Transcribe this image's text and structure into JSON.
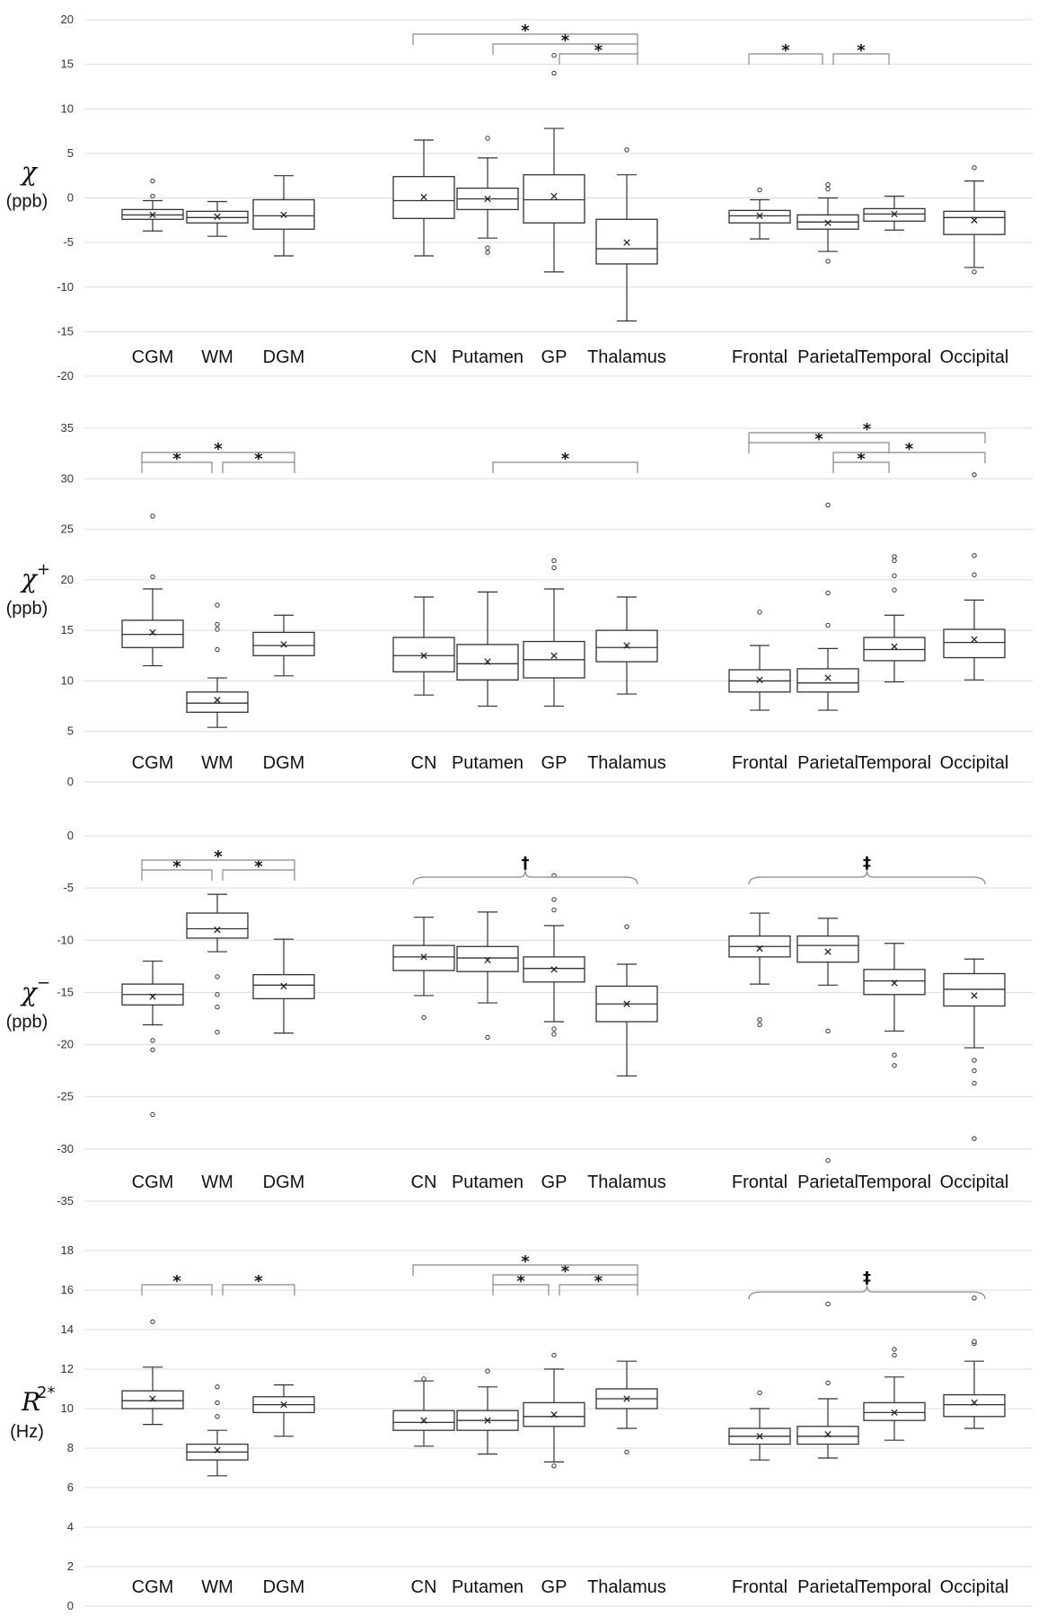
{
  "chart_data": [
    {
      "type": "box",
      "ylabel_symbol": "χ",
      "ylabel_superscript": "",
      "ylabel_unit": "(ppb)",
      "ylim": [
        -20,
        20
      ],
      "yticks": [
        -20,
        -15,
        -10,
        -5,
        0,
        5,
        10,
        15,
        20
      ],
      "grid": true,
      "groups": [
        {
          "categories": [
            "CGM",
            "WM",
            "DGM"
          ],
          "boxes": [
            {
              "wl": -3.7,
              "q1": -2.4,
              "med": -1.9,
              "q3": -1.3,
              "wh": -0.3,
              "mean": -1.9,
              "outliers": [
                0.2,
                1.9
              ]
            },
            {
              "wl": -4.3,
              "q1": -2.8,
              "med": -2.2,
              "q3": -1.5,
              "wh": -0.4,
              "mean": -2.1,
              "outliers": []
            },
            {
              "wl": -6.5,
              "q1": -3.5,
              "med": -2.0,
              "q3": -0.2,
              "wh": 2.5,
              "mean": -1.9,
              "outliers": []
            }
          ]
        },
        {
          "categories": [
            "CN",
            "Putamen",
            "GP",
            "Thalamus"
          ],
          "boxes": [
            {
              "wl": -6.5,
              "q1": -2.3,
              "med": -0.3,
              "q3": 2.4,
              "wh": 6.5,
              "mean": 0.1,
              "outliers": []
            },
            {
              "wl": -4.5,
              "q1": -1.3,
              "med": -0.1,
              "q3": 1.1,
              "wh": 4.5,
              "mean": -0.1,
              "outliers": [
                -5.6,
                -6.1,
                6.7
              ]
            },
            {
              "wl": -8.3,
              "q1": -2.8,
              "med": -0.2,
              "q3": 2.6,
              "wh": 7.8,
              "mean": 0.2,
              "outliers": [
                14.0,
                16.0
              ]
            },
            {
              "wl": -13.8,
              "q1": -7.4,
              "med": -5.7,
              "q3": -2.4,
              "wh": 2.6,
              "mean": -5.0,
              "outliers": [
                5.4
              ]
            }
          ]
        },
        {
          "categories": [
            "Frontal",
            "Parietal",
            "Temporal",
            "Occipital"
          ],
          "boxes": [
            {
              "wl": -4.6,
              "q1": -2.8,
              "med": -2.0,
              "q3": -1.4,
              "wh": -0.2,
              "mean": -2.0,
              "outliers": [
                0.9
              ]
            },
            {
              "wl": -6.0,
              "q1": -3.5,
              "med": -2.7,
              "q3": -1.9,
              "wh": 0.0,
              "mean": -2.8,
              "outliers": [
                -7.1,
                1.0,
                1.5
              ]
            },
            {
              "wl": -3.6,
              "q1": -2.6,
              "med": -1.8,
              "q3": -1.2,
              "wh": 0.2,
              "mean": -1.8,
              "outliers": []
            },
            {
              "wl": -7.8,
              "q1": -4.1,
              "med": -2.2,
              "q3": -1.5,
              "wh": 1.9,
              "mean": -2.5,
              "outliers": [
                -8.3,
                3.4
              ]
            }
          ]
        }
      ],
      "annotations": [
        {
          "type": "bracket",
          "group": 1,
          "from": 0,
          "to": 3,
          "level": 2,
          "label": "*"
        },
        {
          "type": "bracket",
          "group": 1,
          "from": 1,
          "to": 3,
          "level": 1,
          "label": "*"
        },
        {
          "type": "bracket",
          "group": 1,
          "from": 2,
          "to": 3,
          "level": 0,
          "label": "*"
        },
        {
          "type": "bracket",
          "group": 2,
          "from": 0,
          "to": 1,
          "level": 0,
          "label": "*"
        },
        {
          "type": "bracket",
          "group": 2,
          "from": 1,
          "to": 2,
          "level": 0,
          "label": "*"
        }
      ]
    },
    {
      "type": "box",
      "ylabel_symbol": "χ",
      "ylabel_superscript": "+",
      "ylabel_unit": "(ppb)",
      "ylim": [
        0,
        35
      ],
      "yticks": [
        0,
        5,
        10,
        15,
        20,
        25,
        30,
        35
      ],
      "grid": true,
      "groups": [
        {
          "categories": [
            "CGM",
            "WM",
            "DGM"
          ],
          "boxes": [
            {
              "wl": 11.5,
              "q1": 13.3,
              "med": 14.6,
              "q3": 16.0,
              "wh": 19.1,
              "mean": 14.8,
              "outliers": [
                20.3,
                26.3
              ]
            },
            {
              "wl": 5.4,
              "q1": 6.9,
              "med": 7.8,
              "q3": 8.9,
              "wh": 10.3,
              "mean": 8.1,
              "outliers": [
                13.1,
                15.1,
                15.6,
                17.5
              ]
            },
            {
              "wl": 10.5,
              "q1": 12.5,
              "med": 13.5,
              "q3": 14.8,
              "wh": 16.5,
              "mean": 13.6,
              "outliers": []
            }
          ]
        },
        {
          "categories": [
            "CN",
            "Putamen",
            "GP",
            "Thalamus"
          ],
          "boxes": [
            {
              "wl": 8.6,
              "q1": 10.9,
              "med": 12.5,
              "q3": 14.3,
              "wh": 18.3,
              "mean": 12.5,
              "outliers": []
            },
            {
              "wl": 7.5,
              "q1": 10.1,
              "med": 11.7,
              "q3": 13.6,
              "wh": 18.8,
              "mean": 11.9,
              "outliers": []
            },
            {
              "wl": 7.5,
              "q1": 10.3,
              "med": 12.1,
              "q3": 13.9,
              "wh": 19.1,
              "mean": 12.5,
              "outliers": [
                21.2,
                21.9
              ]
            },
            {
              "wl": 8.7,
              "q1": 11.9,
              "med": 13.3,
              "q3": 15.0,
              "wh": 18.3,
              "mean": 13.5,
              "outliers": []
            }
          ]
        },
        {
          "categories": [
            "Frontal",
            "Parietal",
            "Temporal",
            "Occipital"
          ],
          "boxes": [
            {
              "wl": 7.1,
              "q1": 8.9,
              "med": 10.0,
              "q3": 11.1,
              "wh": 13.5,
              "mean": 10.1,
              "outliers": [
                16.8
              ]
            },
            {
              "wl": 7.1,
              "q1": 8.9,
              "med": 9.8,
              "q3": 11.2,
              "wh": 13.2,
              "mean": 10.3,
              "outliers": [
                15.5,
                18.7,
                27.4
              ]
            },
            {
              "wl": 9.9,
              "q1": 12.0,
              "med": 13.1,
              "q3": 14.3,
              "wh": 16.5,
              "mean": 13.4,
              "outliers": [
                19.0,
                20.4,
                21.9,
                22.3
              ]
            },
            {
              "wl": 10.1,
              "q1": 12.3,
              "med": 13.8,
              "q3": 15.1,
              "wh": 18.0,
              "mean": 14.1,
              "outliers": [
                20.5,
                22.4,
                30.4
              ]
            }
          ]
        }
      ],
      "annotations": [
        {
          "type": "bracket",
          "group": 0,
          "from": 0,
          "to": 1,
          "level": 0,
          "label": "*"
        },
        {
          "type": "bracket",
          "group": 0,
          "from": 1,
          "to": 2,
          "level": 0,
          "label": "*"
        },
        {
          "type": "bracket",
          "group": 0,
          "from": 0,
          "to": 2,
          "level": 1,
          "label": "*"
        },
        {
          "type": "bracket",
          "group": 1,
          "from": 1,
          "to": 3,
          "level": 0,
          "label": "*"
        },
        {
          "type": "bracket",
          "group": 2,
          "from": 1,
          "to": 2,
          "level": 0,
          "label": "*"
        },
        {
          "type": "bracket",
          "group": 2,
          "from": 1,
          "to": 3,
          "level": 1,
          "label": "*"
        },
        {
          "type": "bracket",
          "group": 2,
          "from": 0,
          "to": 2,
          "level": 2,
          "label": "*"
        },
        {
          "type": "bracket",
          "group": 2,
          "from": 0,
          "to": 3,
          "level": 3,
          "label": "*"
        }
      ]
    },
    {
      "type": "box",
      "ylabel_symbol": "χ",
      "ylabel_superscript": "−",
      "ylabel_unit": "(ppb)",
      "ylim": [
        -35,
        0
      ],
      "yticks": [
        -35,
        -30,
        -25,
        -20,
        -15,
        -10,
        -5,
        0
      ],
      "grid": true,
      "groups": [
        {
          "categories": [
            "CGM",
            "WM",
            "DGM"
          ],
          "boxes": [
            {
              "wl": -18.1,
              "q1": -16.2,
              "med": -15.2,
              "q3": -14.2,
              "wh": -12.0,
              "mean": -15.4,
              "outliers": [
                -19.6,
                -20.5,
                -26.7
              ]
            },
            {
              "wl": -11.1,
              "q1": -9.8,
              "med": -8.9,
              "q3": -7.4,
              "wh": -5.6,
              "mean": -9.0,
              "outliers": [
                -13.5,
                -15.2,
                -16.4,
                -18.8
              ]
            },
            {
              "wl": -18.9,
              "q1": -15.6,
              "med": -14.3,
              "q3": -13.3,
              "wh": -9.9,
              "mean": -14.4,
              "outliers": []
            }
          ]
        },
        {
          "categories": [
            "CN",
            "Putamen",
            "GP",
            "Thalamus"
          ],
          "boxes": [
            {
              "wl": -15.3,
              "q1": -12.9,
              "med": -11.6,
              "q3": -10.5,
              "wh": -7.8,
              "mean": -11.6,
              "outliers": [
                -17.4
              ]
            },
            {
              "wl": -16.0,
              "q1": -13.0,
              "med": -11.7,
              "q3": -10.6,
              "wh": -7.3,
              "mean": -11.9,
              "outliers": [
                -19.3
              ]
            },
            {
              "wl": -17.8,
              "q1": -14.0,
              "med": -12.7,
              "q3": -11.6,
              "wh": -8.6,
              "mean": -12.8,
              "outliers": [
                -3.8,
                -6.1,
                -7.1,
                -18.5,
                -19.0
              ]
            },
            {
              "wl": -23.0,
              "q1": -17.8,
              "med": -16.1,
              "q3": -14.4,
              "wh": -12.3,
              "mean": -16.1,
              "outliers": [
                -8.7
              ]
            }
          ]
        },
        {
          "categories": [
            "Frontal",
            "Parietal",
            "Temporal",
            "Occipital"
          ],
          "boxes": [
            {
              "wl": -14.2,
              "q1": -11.6,
              "med": -10.6,
              "q3": -9.6,
              "wh": -7.4,
              "mean": -10.8,
              "outliers": [
                -17.6,
                -18.1
              ]
            },
            {
              "wl": -14.3,
              "q1": -12.1,
              "med": -10.5,
              "q3": -9.6,
              "wh": -7.9,
              "mean": -11.1,
              "outliers": [
                -18.7,
                -31.1
              ]
            },
            {
              "wl": -18.7,
              "q1": -15.2,
              "med": -13.9,
              "q3": -12.8,
              "wh": -10.3,
              "mean": -14.1,
              "outliers": [
                -21.0,
                -22.0
              ]
            },
            {
              "wl": -20.3,
              "q1": -16.3,
              "med": -14.7,
              "q3": -13.2,
              "wh": -11.8,
              "mean": -15.3,
              "outliers": [
                -21.5,
                -22.5,
                -23.7,
                -29.0
              ]
            }
          ]
        }
      ],
      "annotations": [
        {
          "type": "bracket",
          "group": 0,
          "from": 0,
          "to": 1,
          "level": 0,
          "label": "*"
        },
        {
          "type": "bracket",
          "group": 0,
          "from": 1,
          "to": 2,
          "level": 0,
          "label": "*"
        },
        {
          "type": "bracket",
          "group": 0,
          "from": 0,
          "to": 2,
          "level": 1,
          "label": "*"
        },
        {
          "type": "brace",
          "group": 1,
          "from": 0,
          "to": 3,
          "level": 0,
          "label": "†"
        },
        {
          "type": "brace",
          "group": 2,
          "from": 0,
          "to": 3,
          "level": 0,
          "label": "‡"
        }
      ]
    },
    {
      "type": "box",
      "ylabel_symbol": "R",
      "ylabel_superscript": "2*",
      "ylabel_unit": "(Hz)",
      "ylim": [
        0,
        18
      ],
      "yticks": [
        0,
        2,
        4,
        6,
        8,
        10,
        12,
        14,
        16,
        18
      ],
      "grid": true,
      "groups": [
        {
          "categories": [
            "CGM",
            "WM",
            "DGM"
          ],
          "boxes": [
            {
              "wl": 9.2,
              "q1": 10.0,
              "med": 10.4,
              "q3": 10.9,
              "wh": 12.1,
              "mean": 10.5,
              "outliers": [
                14.4
              ]
            },
            {
              "wl": 6.6,
              "q1": 7.4,
              "med": 7.8,
              "q3": 8.2,
              "wh": 8.9,
              "mean": 7.9,
              "outliers": [
                9.6,
                10.3,
                11.1
              ]
            },
            {
              "wl": 8.6,
              "q1": 9.8,
              "med": 10.2,
              "q3": 10.6,
              "wh": 11.2,
              "mean": 10.2,
              "outliers": []
            }
          ]
        },
        {
          "categories": [
            "CN",
            "Putamen",
            "GP",
            "Thalamus"
          ],
          "boxes": [
            {
              "wl": 8.1,
              "q1": 8.9,
              "med": 9.3,
              "q3": 9.9,
              "wh": 11.4,
              "mean": 9.4,
              "outliers": [
                11.5
              ]
            },
            {
              "wl": 7.7,
              "q1": 8.9,
              "med": 9.4,
              "q3": 9.9,
              "wh": 11.1,
              "mean": 9.4,
              "outliers": [
                11.9
              ]
            },
            {
              "wl": 7.3,
              "q1": 9.1,
              "med": 9.6,
              "q3": 10.3,
              "wh": 12.0,
              "mean": 9.7,
              "outliers": [
                7.1,
                12.7
              ]
            },
            {
              "wl": 9.0,
              "q1": 10.0,
              "med": 10.5,
              "q3": 11.0,
              "wh": 12.4,
              "mean": 10.5,
              "outliers": [
                7.8
              ]
            }
          ]
        },
        {
          "categories": [
            "Frontal",
            "Parietal",
            "Temporal",
            "Occipital"
          ],
          "boxes": [
            {
              "wl": 7.4,
              "q1": 8.2,
              "med": 8.6,
              "q3": 9.0,
              "wh": 10.0,
              "mean": 8.6,
              "outliers": [
                10.8
              ]
            },
            {
              "wl": 7.5,
              "q1": 8.2,
              "med": 8.6,
              "q3": 9.1,
              "wh": 10.5,
              "mean": 8.7,
              "outliers": [
                11.3,
                15.3
              ]
            },
            {
              "wl": 8.4,
              "q1": 9.4,
              "med": 9.8,
              "q3": 10.3,
              "wh": 11.6,
              "mean": 9.8,
              "outliers": [
                12.7,
                13.0
              ]
            },
            {
              "wl": 9.0,
              "q1": 9.6,
              "med": 10.2,
              "q3": 10.7,
              "wh": 12.4,
              "mean": 10.3,
              "outliers": [
                13.3,
                13.4,
                15.6
              ]
            }
          ]
        }
      ],
      "annotations": [
        {
          "type": "bracket",
          "group": 0,
          "from": 0,
          "to": 1,
          "level": 0,
          "label": "*"
        },
        {
          "type": "bracket",
          "group": 0,
          "from": 1,
          "to": 2,
          "level": 0,
          "label": "*"
        },
        {
          "type": "bracket",
          "group": 1,
          "from": 1,
          "to": 2,
          "level": 0,
          "label": "*"
        },
        {
          "type": "bracket",
          "group": 1,
          "from": 2,
          "to": 3,
          "level": 0,
          "label": "*"
        },
        {
          "type": "bracket",
          "group": 1,
          "from": 1,
          "to": 3,
          "level": 1,
          "label": "*"
        },
        {
          "type": "bracket",
          "group": 1,
          "from": 0,
          "to": 3,
          "level": 2,
          "label": "*"
        },
        {
          "type": "brace",
          "group": 2,
          "from": 0,
          "to": 3,
          "level": 0,
          "label": "‡"
        }
      ]
    }
  ]
}
